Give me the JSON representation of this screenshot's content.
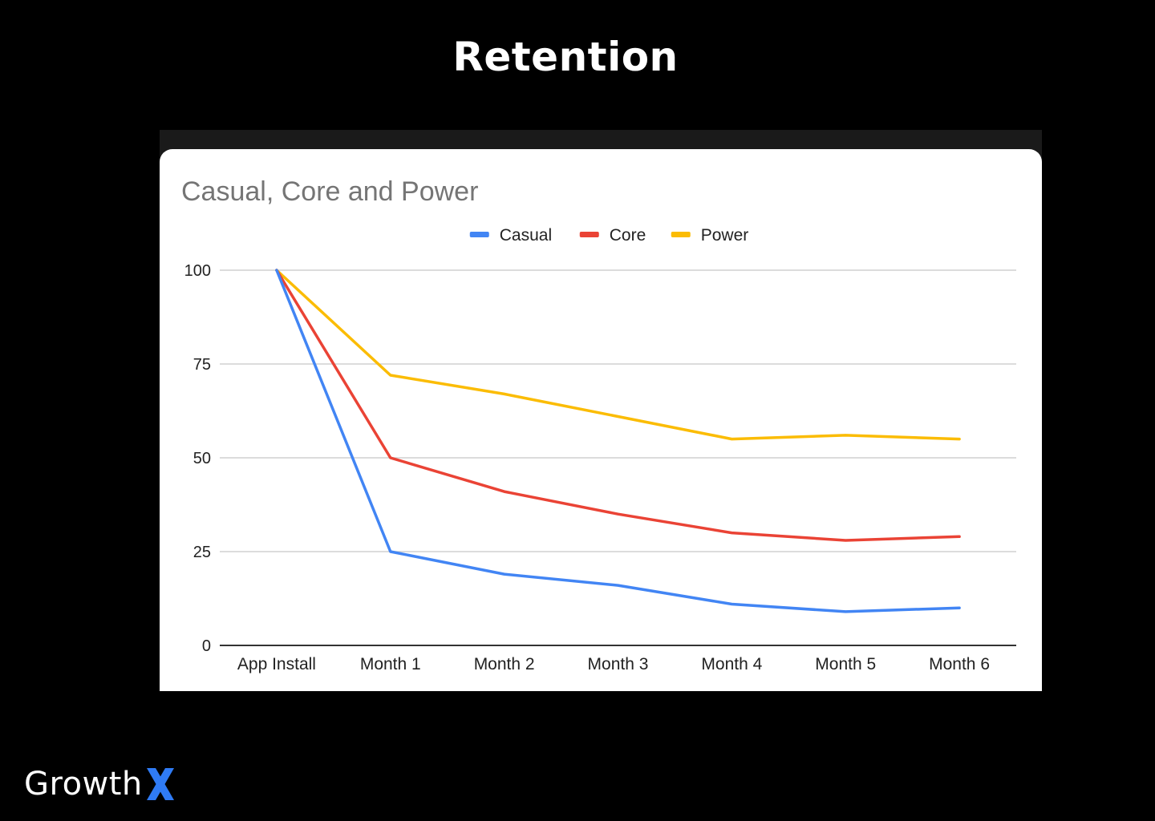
{
  "slide": {
    "title": "Retention"
  },
  "brand": {
    "name": "Growth",
    "mark": "X",
    "mark_color": "#2f7bf5"
  },
  "chart_data": {
    "type": "line",
    "title": "Casual, Core and Power",
    "categories": [
      "App Install",
      "Month 1",
      "Month 2",
      "Month 3",
      "Month 4",
      "Month 5",
      "Month 6"
    ],
    "series": [
      {
        "name": "Casual",
        "color": "#4285f4",
        "values": [
          100,
          25,
          19,
          16,
          11,
          9,
          10
        ]
      },
      {
        "name": "Core",
        "color": "#ea4335",
        "values": [
          100,
          50,
          41,
          35,
          30,
          28,
          29
        ]
      },
      {
        "name": "Power",
        "color": "#fbbc04",
        "values": [
          100,
          72,
          67,
          61,
          55,
          56,
          55
        ]
      }
    ],
    "yticks": [
      0,
      25,
      50,
      75,
      100
    ],
    "ylim": [
      0,
      100
    ],
    "xlabel": "",
    "ylabel": "",
    "grid": true,
    "legend_position": "top-center"
  }
}
